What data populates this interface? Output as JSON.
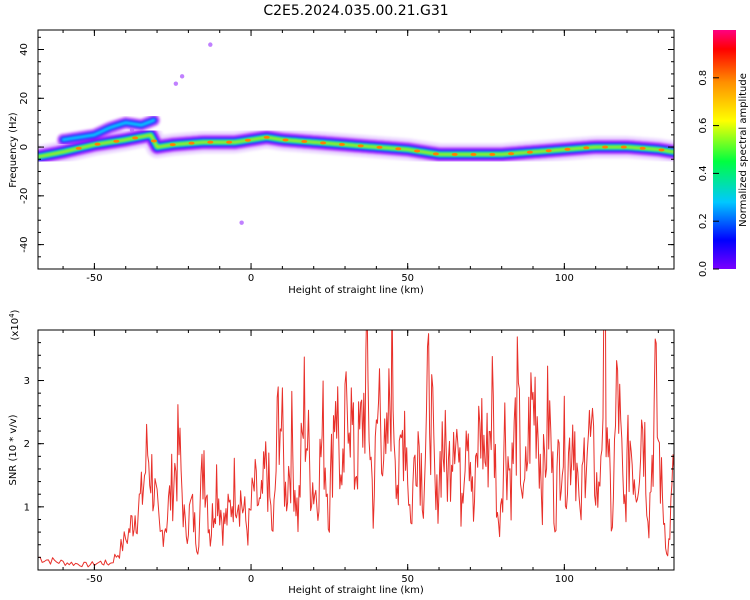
{
  "title": "C2E5.2024.035.00.21.G31",
  "colors": {
    "snr_line": "#e8302a",
    "axis": "#000000",
    "colormap": [
      "#7a00ff",
      "#0000ff",
      "#00c8ff",
      "#00ff40",
      "#ffff00",
      "#ff9000",
      "#ff0000",
      "#ff0080"
    ],
    "colormap_stops": [
      0.0,
      0.12,
      0.28,
      0.45,
      0.62,
      0.78,
      0.92,
      1.0
    ]
  },
  "chart_data": [
    {
      "type": "heatmap",
      "xlabel": "Height of straight line (km)",
      "ylabel": "Frequency (Hz)",
      "xlim": [
        -68,
        135
      ],
      "ylim": [
        -50,
        48
      ],
      "xticks": [
        -50,
        0,
        50,
        100
      ],
      "yticks": [
        -40,
        -20,
        0,
        20,
        40
      ],
      "ridge_frequency_hz": {
        "x": [
          -68,
          -60,
          -50,
          -40,
          -32,
          -30,
          -25,
          -15,
          -5,
          0,
          5,
          10,
          20,
          30,
          40,
          50,
          55,
          60,
          65,
          70,
          80,
          90,
          100,
          110,
          120,
          130,
          135
        ],
        "y": [
          -4,
          -2,
          1,
          3,
          5,
          0,
          1,
          2,
          2,
          3,
          4,
          3,
          2,
          1,
          0,
          -1,
          -2,
          -3,
          -3,
          -3,
          -3,
          -2,
          -1,
          0,
          0,
          -1,
          -2
        ]
      },
      "secondary_branch_hz": {
        "x": [
          -60,
          -50,
          -45,
          -40,
          -35,
          -31
        ],
        "y": [
          3,
          5,
          8,
          10,
          9,
          11
        ]
      },
      "scattered_points_hz": {
        "x": [
          -38,
          -24,
          -22,
          -13,
          -3
        ],
        "y": [
          7,
          26,
          29,
          42,
          -31
        ]
      },
      "colorbar": {
        "label": "Normalized spectral amplitude",
        "range": [
          0.0,
          1.0
        ],
        "ticks": [
          "0.0",
          "0.2",
          "0.4",
          "0.6",
          "0.8"
        ],
        "tick_values": [
          0.0,
          0.2,
          0.4,
          0.6,
          0.8
        ]
      }
    },
    {
      "type": "line",
      "xlabel": "Height of straight line (km)",
      "ylabel": "SNR (10 * v/v)",
      "yscale_label": "(x10",
      "yscale_exp": "4",
      "yscale_close": ")",
      "xlim": [
        -68,
        135
      ],
      "ylim": [
        0,
        3.8
      ],
      "xticks": [
        -50,
        0,
        50,
        100
      ],
      "yticks": [
        1,
        2,
        3
      ],
      "series": [
        {
          "x": [
            -68,
            -64,
            -60,
            -56,
            -52,
            -48,
            -45,
            -42,
            -39,
            -37,
            -35,
            -33,
            -31,
            -29,
            -27,
            -25,
            -23,
            -21,
            -19,
            -17,
            -15,
            -13,
            -11,
            -9,
            -7,
            -5,
            -3,
            -1,
            1,
            3,
            5,
            7,
            9,
            11,
            13,
            15,
            17,
            19,
            21,
            23,
            25,
            27,
            29,
            31,
            33,
            35,
            37,
            39,
            41,
            43,
            45,
            47,
            49,
            51,
            53,
            55,
            57,
            59,
            61,
            63,
            65,
            67,
            69,
            71,
            73,
            75,
            77,
            79,
            81,
            83,
            85,
            87,
            89,
            91,
            93,
            95,
            97,
            99,
            101,
            103,
            105,
            107,
            109,
            111,
            113,
            115,
            117,
            119,
            121,
            123,
            125,
            127,
            129,
            131,
            133,
            135
          ],
          "y": [
            0.2,
            0.15,
            0.12,
            0.1,
            0.08,
            0.12,
            0.1,
            0.3,
            0.6,
            0.9,
            1.1,
            1.9,
            1.3,
            0.5,
            0.8,
            1.4,
            1.9,
            0.6,
            1.0,
            0.4,
            1.9,
            0.5,
            1.5,
            0.7,
            0.9,
            1.4,
            1.1,
            0.6,
            1.3,
            0.9,
            1.7,
            0.5,
            2.8,
            1.2,
            2.0,
            0.8,
            2.6,
            1.5,
            1.2,
            2.2,
            0.9,
            3.1,
            1.0,
            3.2,
            1.6,
            2.1,
            3.1,
            1.0,
            2.9,
            1.5,
            3.3,
            1.2,
            2.6,
            0.7,
            2.4,
            1.3,
            3.1,
            0.9,
            2.1,
            1.5,
            2.8,
            1.1,
            2.9,
            0.8,
            2.4,
            1.7,
            2.7,
            0.6,
            2.2,
            1.4,
            2.6,
            1.0,
            2.4,
            2.8,
            1.3,
            2.5,
            0.9,
            2.2,
            1.6,
            2.5,
            0.7,
            2.3,
            1.8,
            1.1,
            3.8,
            0.5,
            3.0,
            0.9,
            2.1,
            1.4,
            2.6,
            0.8,
            2.8,
            1.3,
            0.2,
            1.6
          ]
        }
      ]
    }
  ]
}
